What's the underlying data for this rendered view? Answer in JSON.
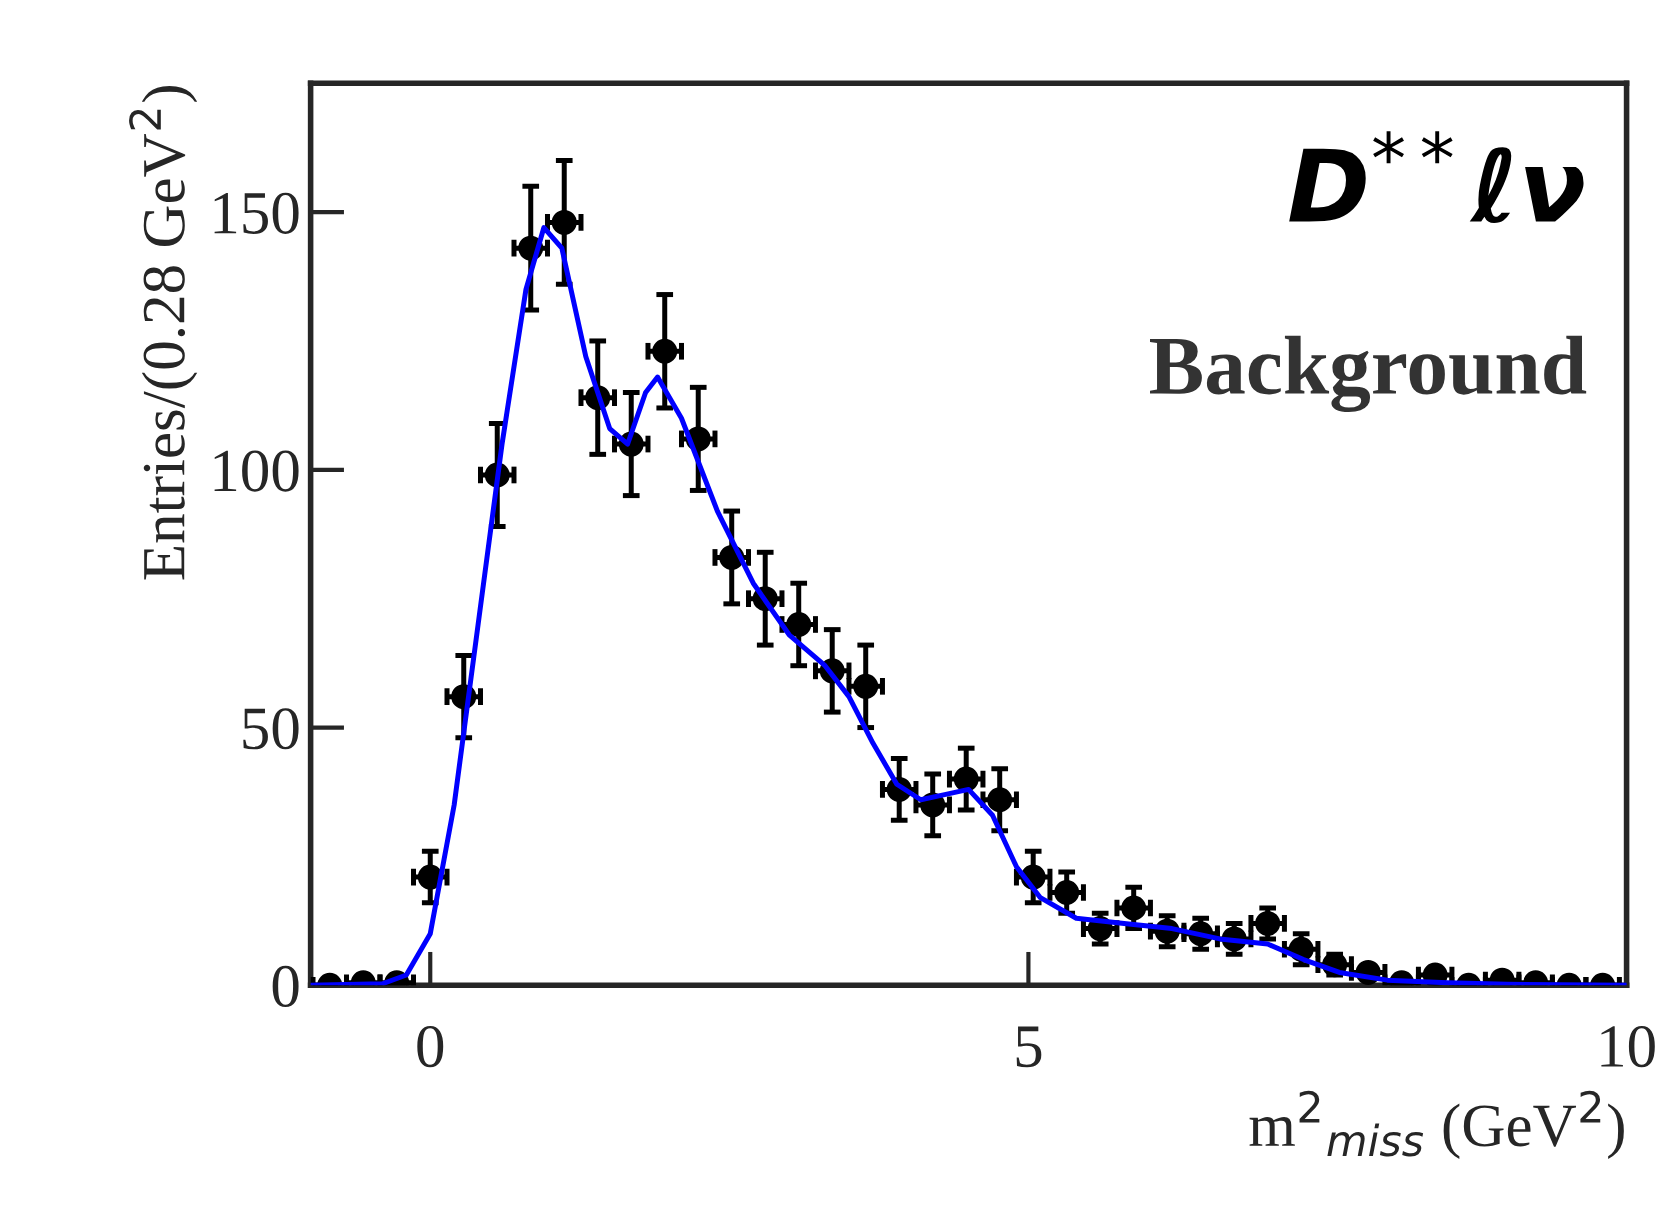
{
  "chart_data": {
    "type": "scatter",
    "xlabel": "m$^{2}$$_{miss}$ (GeV$^{2}$)",
    "ylabel": "Entries/(0.28 GeV$^{2}$)",
    "annotations": [
      "D$^{**}$ℓν",
      "Background"
    ],
    "xlim": [
      -1,
      10
    ],
    "xticks": [
      0,
      5,
      10
    ],
    "ylim": [
      0,
      175
    ],
    "yticks": [
      0,
      50,
      100,
      150
    ],
    "grid": false,
    "legend": false,
    "series": [
      {
        "type": "scatter",
        "marker": "circle",
        "color": "#000000",
        "x": [
          -0.84,
          -0.56,
          -0.28,
          0,
          0.28,
          0.56,
          0.84,
          1.12,
          1.4,
          1.68,
          1.96,
          2.24,
          2.52,
          2.8,
          3.08,
          3.36,
          3.64,
          3.92,
          4.2,
          4.48,
          4.76,
          5.04,
          5.32,
          5.6,
          5.88,
          6.16,
          6.44,
          6.72,
          7.0,
          7.28,
          7.56,
          7.84,
          8.12,
          8.4,
          8.68,
          8.96,
          9.24,
          9.52,
          9.8
        ],
        "values": [
          0,
          0.5,
          0.5,
          21,
          56,
          99,
          143,
          148,
          114,
          105,
          123,
          106,
          83,
          75,
          70,
          61,
          58,
          38,
          35,
          40,
          36,
          21,
          18,
          11,
          15,
          10.5,
          10,
          9,
          12,
          7,
          4,
          2.5,
          0.5,
          2,
          0,
          1,
          0.5,
          0,
          0
        ],
        "errors": [
          null,
          null,
          null,
          5,
          8,
          10,
          12,
          12,
          11,
          10,
          11,
          10,
          9,
          9,
          8,
          8,
          8,
          6,
          6,
          6,
          6,
          5,
          4,
          3,
          4,
          3,
          3,
          3,
          3,
          3,
          2,
          null,
          null,
          null,
          null,
          null,
          null,
          null,
          null
        ],
        "xerrors": [
          0.14,
          0.14,
          0.14,
          0.14,
          0.14,
          0.14,
          0.14,
          0.14,
          0.14,
          0.14,
          0.14,
          0.14,
          0.14,
          0.14,
          0.14,
          0.14,
          0.14,
          0.14,
          0.14,
          0.14,
          0.14,
          0.14,
          0.14,
          0.14,
          0.14,
          0.14,
          0.14,
          0.14,
          0.14,
          0.14,
          0.14,
          0.14,
          0.14,
          0.14,
          0.14,
          0.14,
          0.14,
          0.14,
          0.14
        ]
      },
      {
        "type": "line",
        "marker": "none",
        "color": "#0000ff",
        "line_style": "solid",
        "x": [
          -1,
          -0.4,
          -0.2,
          0,
          0.2,
          0.4,
          0.6,
          0.8,
          0.95,
          1.1,
          1.3,
          1.5,
          1.65,
          1.8,
          1.9,
          2.1,
          2.4,
          2.7,
          3.0,
          3.3,
          3.5,
          3.7,
          3.9,
          4.1,
          4.3,
          4.5,
          4.7,
          4.9,
          5.1,
          5.4,
          5.8,
          6.2,
          6.6,
          7.0,
          7.3,
          7.6,
          8.0,
          8.5,
          9.0,
          10
        ],
        "values": [
          0,
          0.3,
          2,
          10,
          35,
          70,
          105,
          135,
          147,
          143,
          122,
          108,
          105,
          115,
          118,
          110,
          92,
          78,
          68,
          62,
          56,
          47,
          39,
          36,
          37,
          38,
          33,
          23,
          17,
          13,
          12,
          11,
          9,
          8,
          5,
          2.5,
          1,
          0.5,
          0.2,
          0
        ]
      }
    ]
  }
}
